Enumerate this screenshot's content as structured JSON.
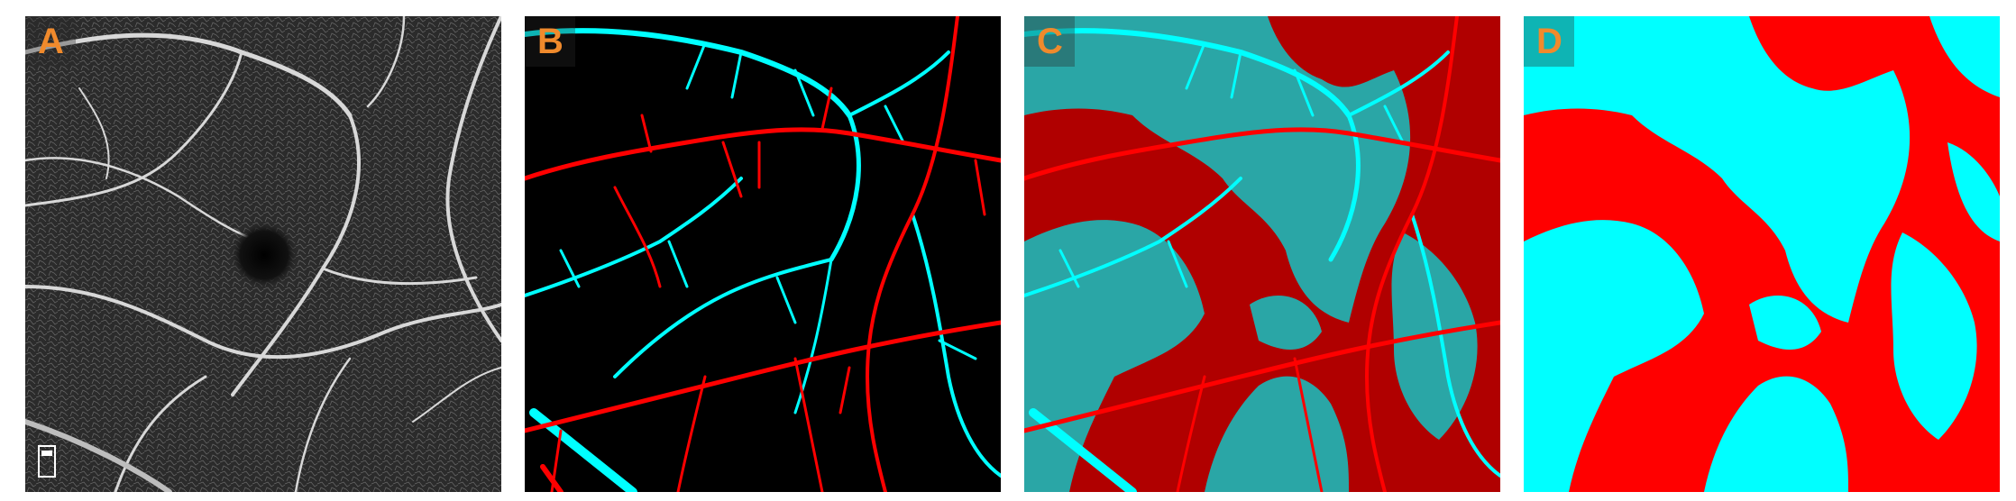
{
  "panels": [
    {
      "label": "A",
      "content": "oct-angiogram"
    },
    {
      "label": "B",
      "content": "vessel-classification"
    },
    {
      "label": "C",
      "content": "vessel-territory-overlay"
    },
    {
      "label": "D",
      "content": "territory-map"
    }
  ],
  "colors": {
    "label": "#f08a2c",
    "artery": "#ff0000",
    "vein": "#00ffff",
    "artery_region": "#b00000",
    "vein_region": "#2aa6a6",
    "background": "#000000"
  }
}
